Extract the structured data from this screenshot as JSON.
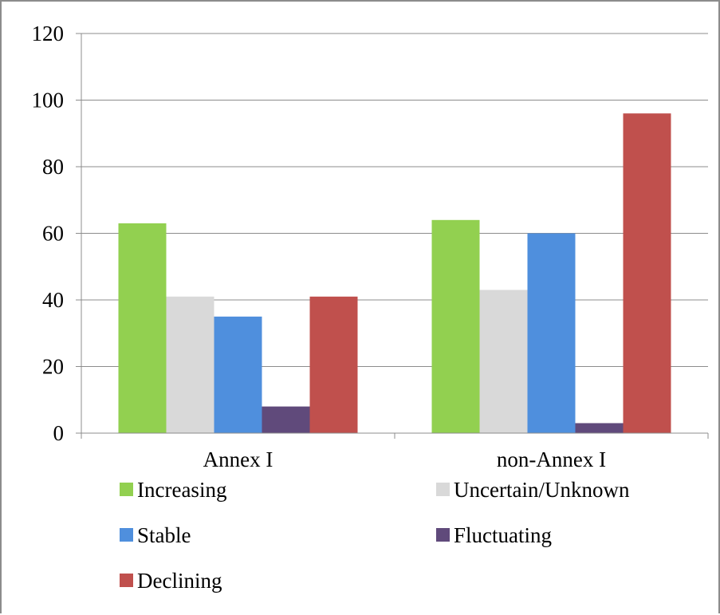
{
  "chart_data": {
    "type": "bar",
    "title": "",
    "xlabel": "",
    "ylabel": "",
    "categories": [
      "Annex I",
      "non-Annex I"
    ],
    "series": [
      {
        "name": "Increasing",
        "values": [
          63,
          64
        ],
        "color": "#92d050"
      },
      {
        "name": "Uncertain/Unknown",
        "values": [
          41,
          43
        ],
        "color": "#d9d9d9"
      },
      {
        "name": "Stable",
        "values": [
          35,
          60
        ],
        "color": "#4f8fdd"
      },
      {
        "name": "Fluctuating",
        "values": [
          8,
          3
        ],
        "color": "#604a7b"
      },
      {
        "name": "Declining",
        "values": [
          41,
          96
        ],
        "color": "#c0504d"
      }
    ],
    "ylim": [
      0,
      120
    ],
    "yticks": [
      "0",
      "20",
      "40",
      "60",
      "80",
      "100",
      "120"
    ],
    "grid": true,
    "legend_position": "bottom"
  }
}
